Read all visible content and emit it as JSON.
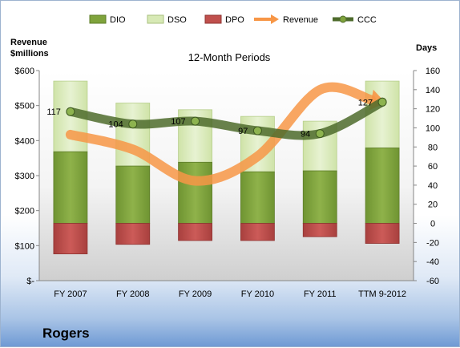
{
  "company": "Rogers",
  "chart_data": {
    "type": "bar",
    "title": "12-Month Periods",
    "categories": [
      "FY 2007",
      "FY 2008",
      "FY 2009",
      "FY 2010",
      "FY 2011",
      "TTM 9-2012"
    ],
    "left_axis": {
      "label_line1": "Revenue",
      "label_line2": "$millions",
      "ylim": [
        0,
        600
      ],
      "ticks": [
        "$-",
        "$100",
        "$200",
        "$300",
        "$400",
        "$500",
        "$600"
      ],
      "tick_values": [
        0,
        100,
        200,
        300,
        400,
        500,
        600
      ]
    },
    "right_axis": {
      "label": "Days",
      "ylim": [
        -60,
        160
      ],
      "ticks": [
        "-60",
        "-40",
        "-20",
        "0",
        "20",
        "40",
        "60",
        "80",
        "100",
        "120",
        "140",
        "160"
      ],
      "tick_values": [
        -60,
        -40,
        -20,
        0,
        20,
        40,
        60,
        80,
        100,
        120,
        140,
        160
      ]
    },
    "series": [
      {
        "name": "DIO",
        "type": "stacked-bar",
        "axis": "right",
        "color": "#7fa33c",
        "values": [
          75,
          60,
          64,
          54,
          55,
          79
        ]
      },
      {
        "name": "DSO",
        "type": "stacked-bar",
        "axis": "right",
        "color": "#d7e9b5",
        "values": [
          74,
          66,
          55,
          58,
          52,
          70
        ]
      },
      {
        "name": "DPO",
        "type": "negative-bar",
        "axis": "right",
        "color": "#c0504d",
        "values": [
          -32,
          -22,
          -18,
          -18,
          -14,
          -21
        ]
      },
      {
        "name": "Revenue",
        "type": "arrow-line",
        "axis": "left",
        "color": "#f79646",
        "values": [
          417,
          375,
          285,
          355,
          545,
          510
        ]
      },
      {
        "name": "CCC",
        "type": "line",
        "axis": "right",
        "color": "#4e6b2c",
        "values": [
          117,
          104,
          107,
          97,
          94,
          127
        ]
      }
    ],
    "ccc_labels": [
      "117",
      "104",
      "107",
      "97",
      "94",
      "127"
    ],
    "grid": false,
    "legend_position": "top"
  }
}
